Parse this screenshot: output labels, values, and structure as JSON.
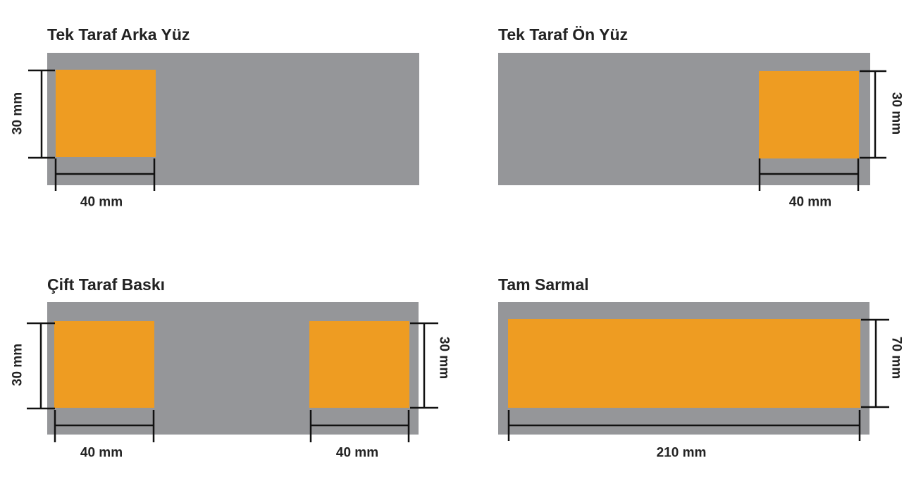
{
  "colors": {
    "band": "#959699",
    "print_area": "#EE9C22",
    "dimension_line": "#111111",
    "text": "#222222"
  },
  "panels": [
    {
      "title": "Tek Taraf Arka Yüz",
      "areas": [
        {
          "width_label": "40 mm",
          "height_label": "30 mm"
        }
      ]
    },
    {
      "title": "Tek Taraf Ön Yüz",
      "areas": [
        {
          "width_label": "40 mm",
          "height_label": "30 mm"
        }
      ]
    },
    {
      "title": "Çift Taraf Baskı",
      "areas": [
        {
          "width_label": "40 mm",
          "height_label": "30 mm"
        },
        {
          "width_label": "40 mm",
          "height_label": "30 mm"
        }
      ]
    },
    {
      "title": "Tam Sarmal",
      "areas": [
        {
          "width_label": "210 mm",
          "height_label": "70 mm"
        }
      ]
    }
  ]
}
